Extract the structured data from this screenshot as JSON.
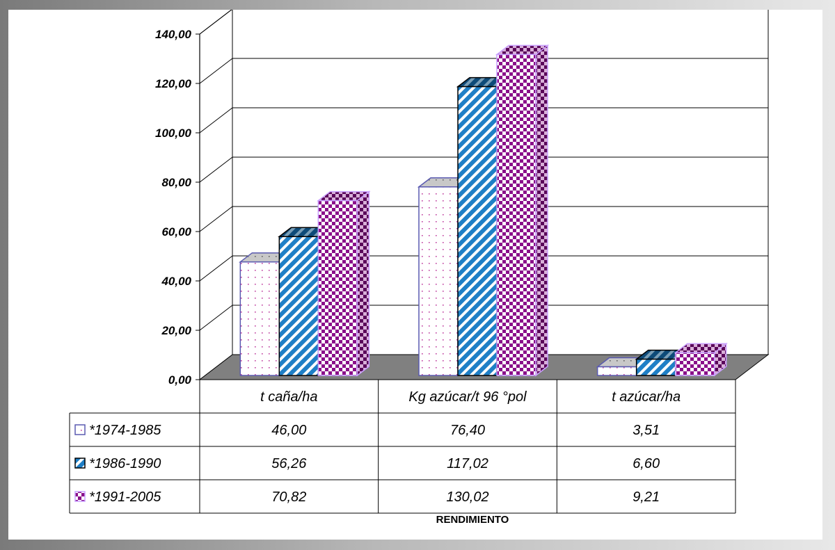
{
  "chart_data": {
    "type": "bar",
    "categories": [
      "t caña/ha",
      "Kg azúcar/t 96 °pol",
      "t azúcar/ha"
    ],
    "series": [
      {
        "name": "*1974-1985",
        "values": [
          46.0,
          76.4,
          3.51
        ],
        "labels": [
          "46,00",
          "76,40",
          "3,51"
        ]
      },
      {
        "name": "*1986-1990",
        "values": [
          56.26,
          117.02,
          6.6
        ],
        "labels": [
          "56,26",
          "117,02",
          "6,60"
        ]
      },
      {
        "name": "*1991-2005",
        "values": [
          70.82,
          130.02,
          9.21
        ],
        "labels": [
          "70,82",
          "130,02",
          "9,21"
        ]
      }
    ],
    "xlabel": "RENDIMIENTO",
    "ylabel": "",
    "ylim": [
      0,
      140
    ],
    "yticks": [
      "0,00",
      "20,00",
      "40,00",
      "60,00",
      "80,00",
      "100,00",
      "120,00",
      "140,00"
    ],
    "grid": true,
    "three_d": true,
    "legend": "data-table",
    "colors": {
      "series": [
        "#ffffff",
        "#1f7fc6",
        "#8a0f8a"
      ],
      "pattern_fg": [
        "#c040a0",
        "#ffffff",
        "#ffffff"
      ],
      "outline": [
        "#5a5ab0",
        "#000000",
        "#c9a0ff"
      ],
      "floor": "#808080"
    }
  }
}
